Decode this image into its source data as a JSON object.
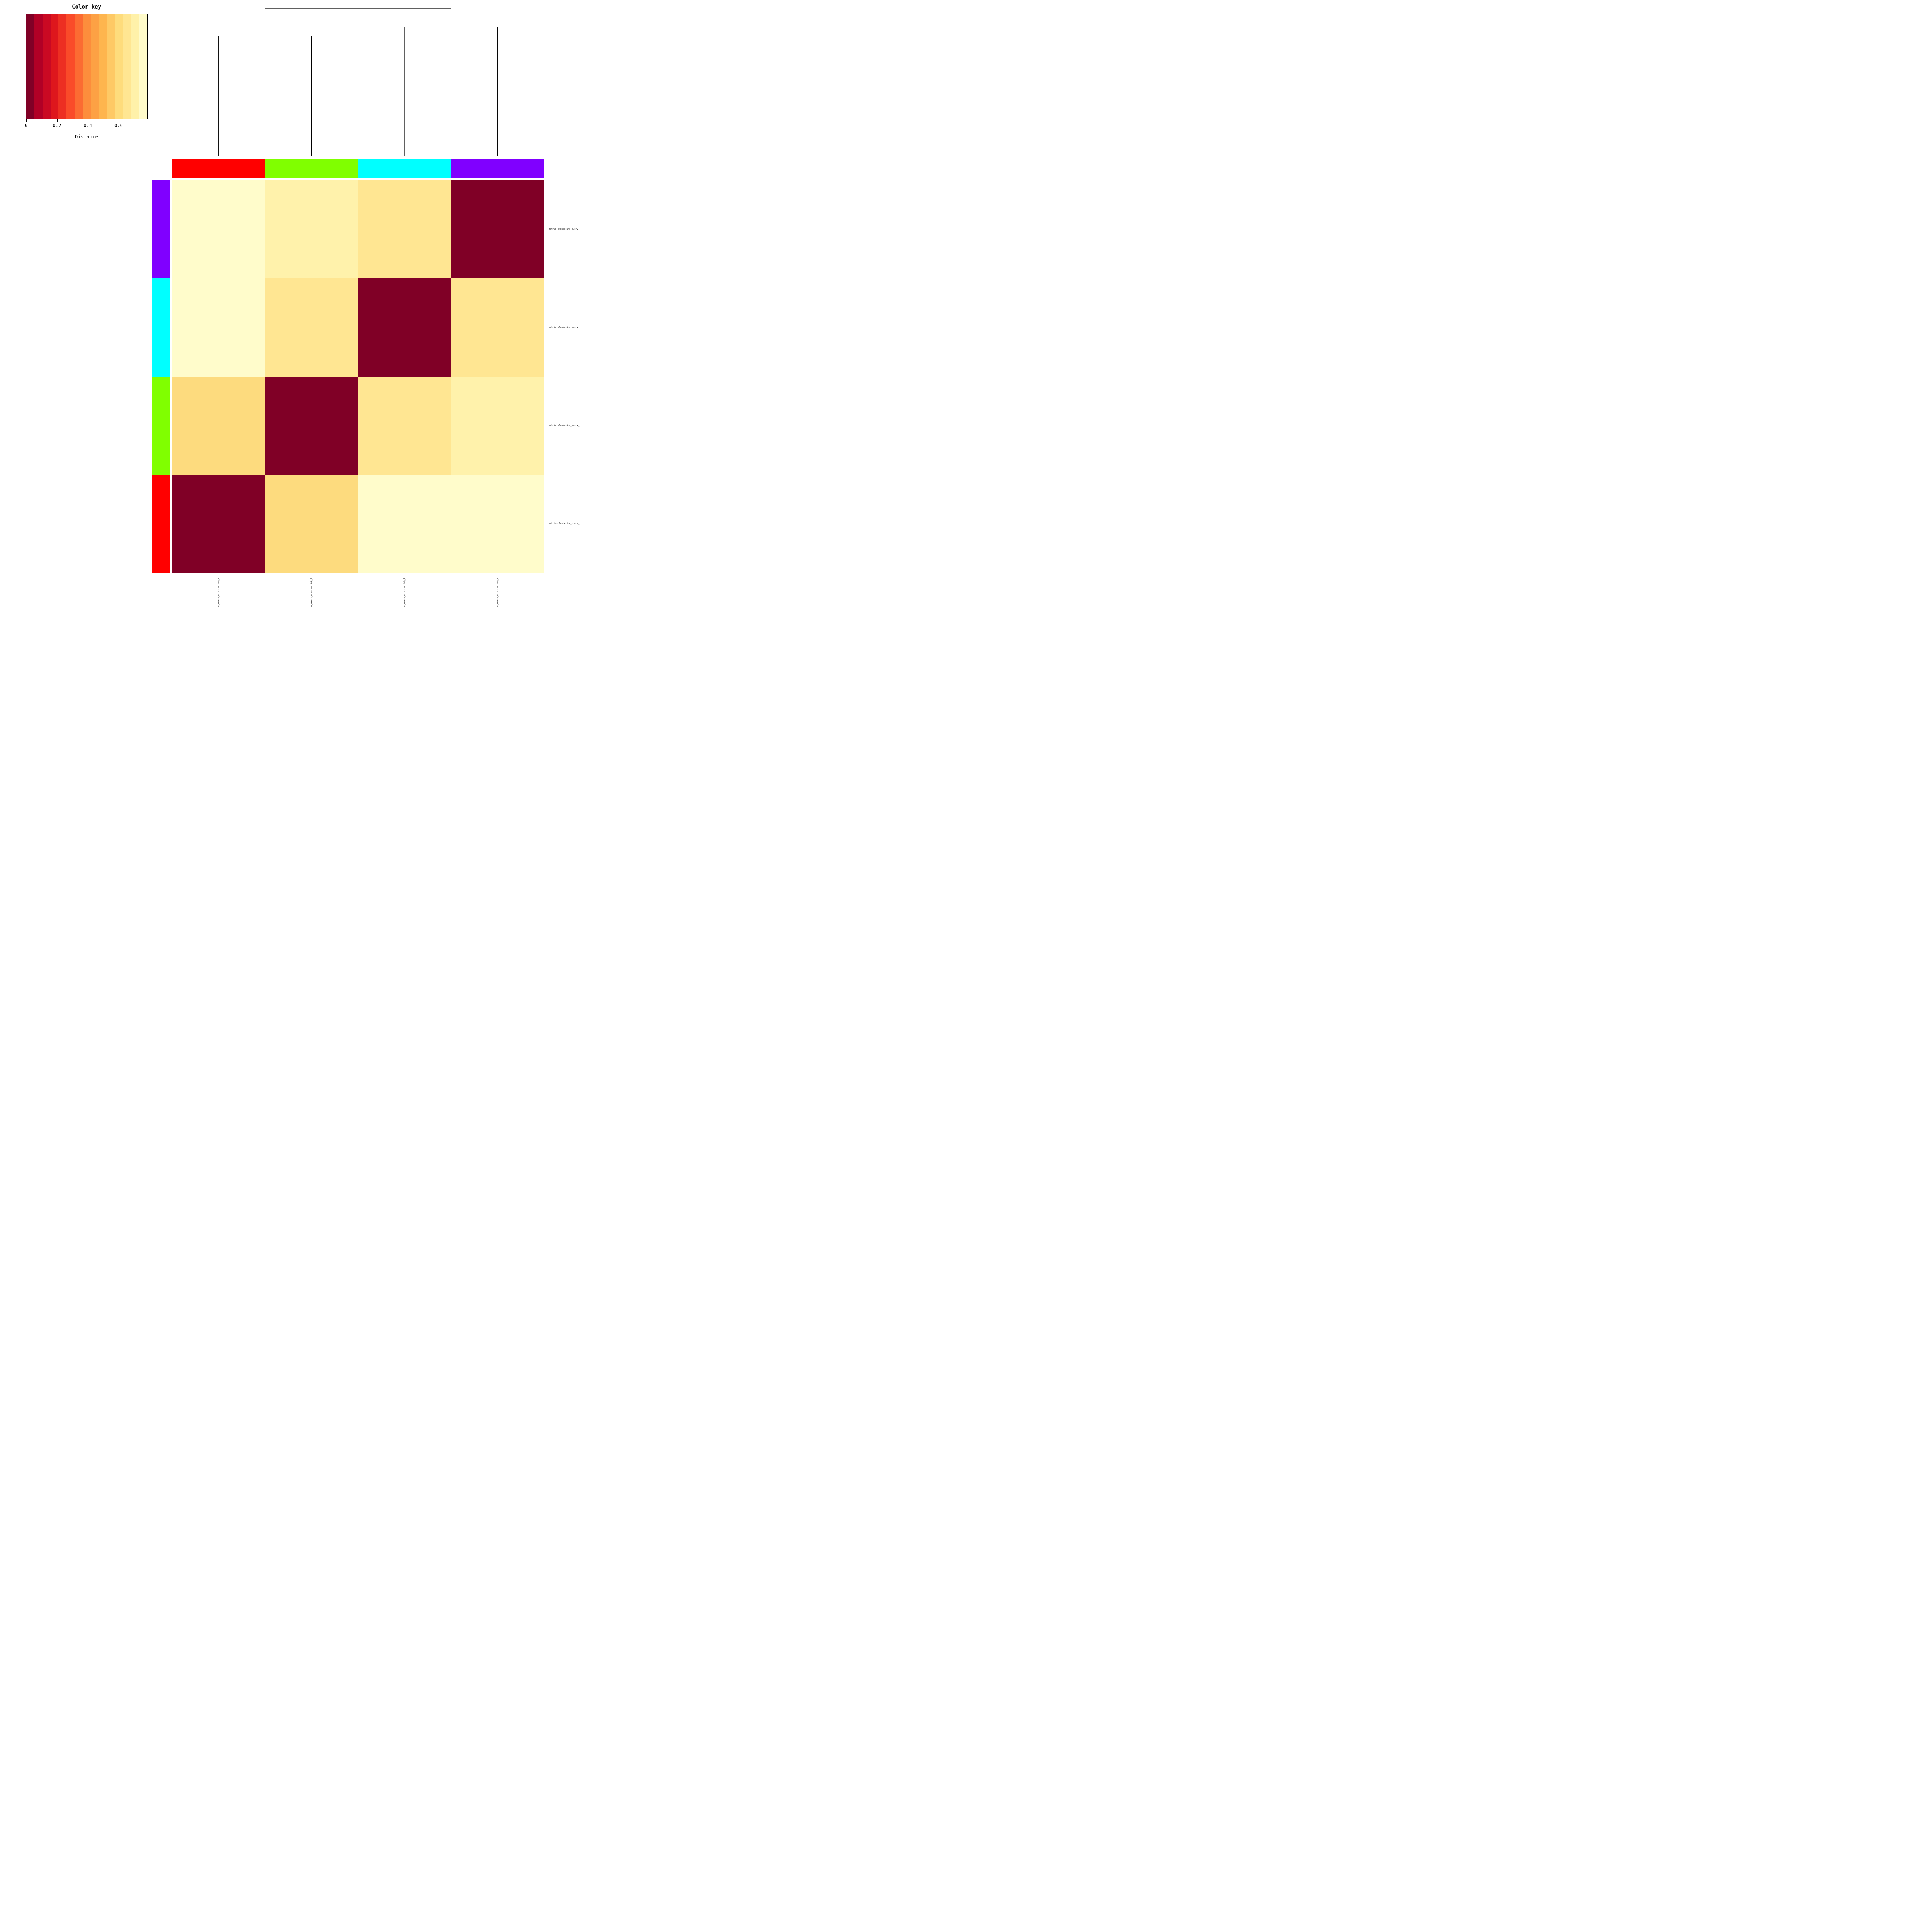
{
  "chart_data": {
    "type": "heatmap",
    "description": "Pairwise motif distance heatmap with column dendrogram and cluster side colors (matrix-clustering output)",
    "legend": {
      "title": "Color key",
      "axis_label": "Distance",
      "tick_labels": [
        "0",
        "0.2",
        "0.4",
        "0.6"
      ],
      "tick_values": [
        0,
        0.2,
        0.4,
        0.6
      ],
      "value_range": [
        0,
        0.78
      ],
      "band_colors": [
        "#800026",
        "#B10026",
        "#CA0923",
        "#DE171D",
        "#ED2F22",
        "#FA4B29",
        "#FC6B32",
        "#FD8D3C",
        "#FDA144",
        "#FEB54E",
        "#FEC965",
        "#FEDC7C",
        "#FFE692",
        "#FFF1A9",
        "#FFFBCA"
      ]
    },
    "columns": {
      "labels_visible": [
        "ng_query_matrices.tab_1",
        "ng_query_matrices.tab_3",
        "ng_query_matrices.tab_2",
        "ng_query_matrices.tab_4"
      ],
      "side_colors": [
        "#FF0000",
        "#80FF00",
        "#00FFFF",
        "#8000FF"
      ]
    },
    "rows": {
      "labels_visible": [
        "matrix-clustering_query_",
        "matrix-clustering_query_",
        "matrix-clustering_query_",
        "matrix-clustering_query_"
      ],
      "side_colors": [
        "#8000FF",
        "#00FFFF",
        "#80FF00",
        "#FF0000"
      ]
    },
    "cell_colors": [
      [
        "#FFFCCB",
        "#FFF2AB",
        "#FFE692",
        "#800026"
      ],
      [
        "#FFFCCB",
        "#FFE692",
        "#800026",
        "#FFE692"
      ],
      [
        "#FDDB7E",
        "#800026",
        "#FFE692",
        "#FFF2AB"
      ],
      [
        "#800026",
        "#FDDB7E",
        "#FFFCCB",
        "#FFFCCB"
      ]
    ],
    "distance_values_estimated": [
      [
        0.75,
        0.7,
        0.65,
        0.0
      ],
      [
        0.75,
        0.65,
        0.0,
        0.65
      ],
      [
        0.61,
        0.0,
        0.65,
        0.7
      ],
      [
        0.0,
        0.61,
        0.75,
        0.75
      ]
    ],
    "dendrogram": {
      "orientation": "top-columns",
      "grouping": "((tab_1,tab_3),(tab_2,tab_4))",
      "merges": [
        {
          "members": [
            0,
            1
          ],
          "height": 0.61
        },
        {
          "members": [
            2,
            3
          ],
          "height": 0.655
        },
        {
          "members": [
            "merge_0",
            "merge_1"
          ],
          "height": 0.75
        }
      ],
      "line_color": "#000000"
    }
  }
}
